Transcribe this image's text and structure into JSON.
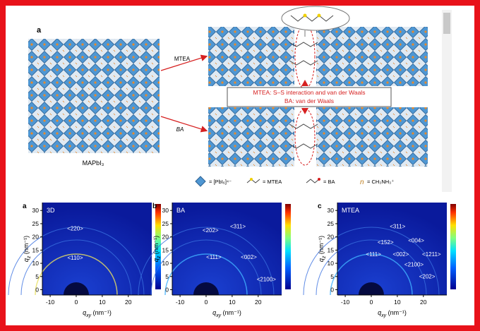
{
  "top_figure": {
    "panel_label": "a",
    "left_label": "MAPbI₃",
    "arrow_top_label": "MTEA",
    "arrow_bottom_label": "BA",
    "box_line_1": "MTEA: S–S interaction and van der Waals",
    "box_line_2": "BA: van der Waals",
    "legend": [
      "= [PbI₆]⁴⁻",
      "= MTEA",
      "= BA",
      "= CH₃NH₃⁺"
    ]
  },
  "axes": {
    "x_label": {
      "symbol": "q",
      "subscript": "xy",
      "unit": " (nm⁻¹)"
    },
    "y_label": {
      "symbol": "q",
      "subscript": "z",
      "unit": " (nm⁻¹)"
    },
    "xlim": [
      -13,
      29
    ],
    "ylim": [
      -2,
      33
    ],
    "xticks": [
      -10,
      0,
      10,
      20
    ],
    "yticks": [
      0,
      5,
      10,
      15,
      20,
      25,
      30
    ]
  },
  "plots": [
    {
      "panel": "a",
      "label": "3D",
      "peaks": [
        "<220>",
        "<110>"
      ]
    },
    {
      "panel": "b",
      "label": "BA",
      "peaks": [
        "<202>",
        "<311>",
        "<111>",
        "<002>",
        "<2100>"
      ]
    },
    {
      "panel": "c",
      "label": "MTEA",
      "peaks": [
        "<311>",
        "<152>",
        "<004>",
        "<111>",
        "<002>",
        "<1211>",
        "<2100>",
        "<202>"
      ]
    }
  ]
}
